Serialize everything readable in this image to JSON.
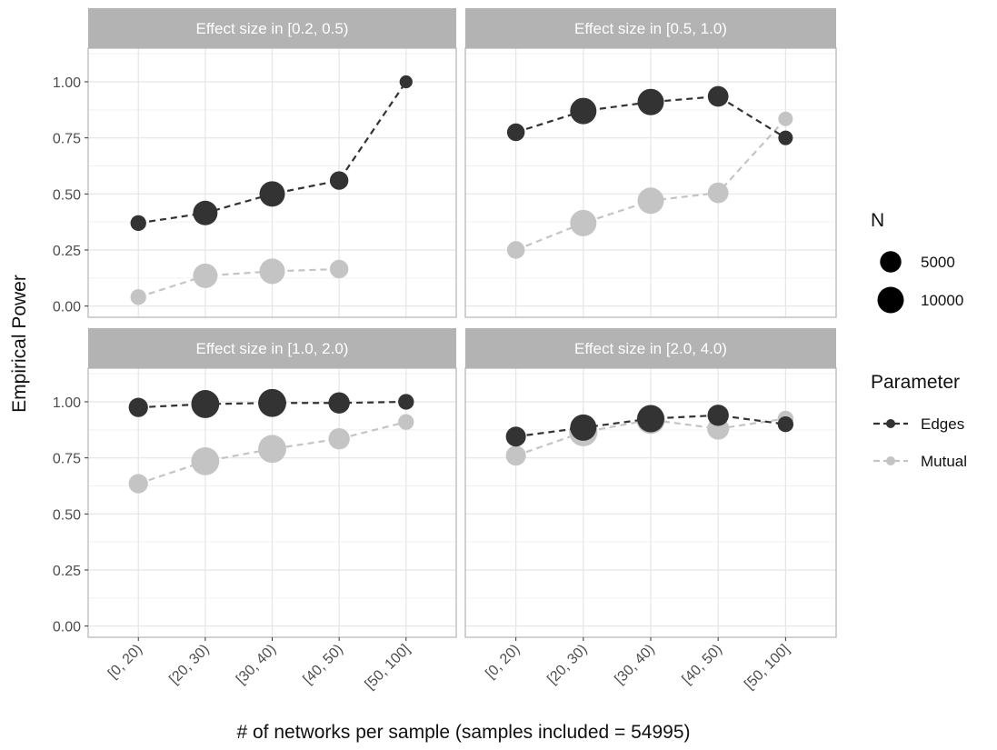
{
  "chart_data": {
    "type": "line",
    "ylabel": "Empirical Power",
    "xlabel": "# of networks per sample (samples included = 54995)",
    "categories": [
      "[0, 20)",
      "[20, 30)",
      "[30, 40)",
      "[40, 50)",
      "[50, 100]"
    ],
    "ylim": [
      -0.05,
      1.15
    ],
    "yticks": [
      "0.00",
      "0.25",
      "0.50",
      "0.75",
      "1.00"
    ],
    "ytick_values": [
      0,
      0.25,
      0.5,
      0.75,
      1.0
    ],
    "grid": true,
    "colors": {
      "Edges": "#333333",
      "Mutual": "#c4c4c4",
      "strip": "#b3b3b3",
      "grid": "#e5e5e5"
    },
    "panels": [
      {
        "title": "Effect size in [0.2, 0.5)",
        "series": [
          {
            "name": "Edges",
            "values": [
              0.37,
              0.415,
              0.5,
              0.56,
              1.0
            ],
            "n": [
              1500,
              8000,
              9000,
              3000,
              500
            ]
          },
          {
            "name": "Mutual",
            "values": [
              0.04,
              0.135,
              0.155,
              0.165,
              null
            ],
            "n": [
              1500,
              8000,
              9000,
              3000,
              null
            ]
          }
        ]
      },
      {
        "title": "Effect size in [0.5, 1.0)",
        "series": [
          {
            "name": "Edges",
            "values": [
              0.775,
              0.87,
              0.91,
              0.935,
              0.75
            ],
            "n": [
              2500,
              10000,
              10000,
              4500,
              1000
            ]
          },
          {
            "name": "Mutual",
            "values": [
              0.25,
              0.37,
              0.47,
              0.505,
              0.835
            ],
            "n": [
              2500,
              10000,
              10000,
              4500,
              1000
            ]
          }
        ]
      },
      {
        "title": "Effect size in [1.0, 2.0)",
        "series": [
          {
            "name": "Edges",
            "values": [
              0.975,
              0.99,
              0.995,
              0.995,
              1.0
            ],
            "n": [
              3500,
              12000,
              12000,
              5000,
              1500
            ]
          },
          {
            "name": "Mutual",
            "values": [
              0.635,
              0.735,
              0.79,
              0.835,
              0.91
            ],
            "n": [
              3500,
              12000,
              12000,
              5000,
              1500
            ]
          }
        ]
      },
      {
        "title": "Effect size in [2.0, 4.0)",
        "series": [
          {
            "name": "Edges",
            "values": [
              0.845,
              0.885,
              0.925,
              0.94,
              0.9
            ],
            "n": [
              4000,
              10000,
              11000,
              5000,
              1500
            ]
          },
          {
            "name": "Mutual",
            "values": [
              0.76,
              0.865,
              0.92,
              0.88,
              0.925
            ],
            "n": [
              4000,
              12500,
              12500,
              5500,
              1500
            ]
          }
        ]
      }
    ],
    "legend": {
      "position": "right",
      "size_title": "N",
      "size_breaks": [
        "5000",
        "10000"
      ],
      "size_break_values": [
        5000,
        10000
      ],
      "color_title": "Parameter",
      "color_labels": [
        "Edges",
        "Mutual"
      ]
    }
  }
}
